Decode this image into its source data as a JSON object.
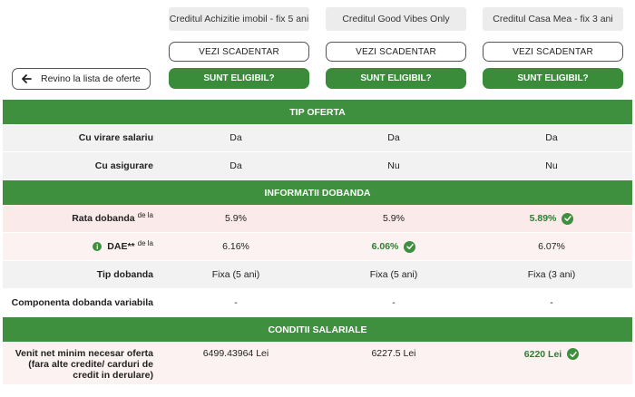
{
  "back_button": {
    "label": "Revino la lista de oferte",
    "icon": "arrow-left-icon"
  },
  "offers": [
    {
      "title": "Creditul Achizitie imobil - fix 5 ani",
      "schedule_label": "VEZI SCADENTAR",
      "eligible_label": "SUNT ELIGIBIL?"
    },
    {
      "title": "Creditul Good Vibes Only",
      "schedule_label": "VEZI SCADENTAR",
      "eligible_label": "SUNT ELIGIBIL?"
    },
    {
      "title": "Creditul Casa Mea - fix 3 ani",
      "schedule_label": "VEZI SCADENTAR",
      "eligible_label": "SUNT ELIGIBIL?"
    }
  ],
  "sections": {
    "tip_oferta": "TIP OFERTA",
    "informatii_dobanda": "INFORMATII DOBANDA",
    "conditii_salariale": "CONDITII SALARIALE"
  },
  "rows": {
    "virare_salariu": {
      "label": "Cu virare salariu",
      "values": [
        "Da",
        "Da",
        "Da"
      ]
    },
    "asigurare": {
      "label": "Cu asigurare",
      "values": [
        "Da",
        "Nu",
        "Nu"
      ]
    },
    "rata_dobanda": {
      "label": "Rata dobanda",
      "sup": "de la",
      "values": [
        "5.9%",
        "5.9%",
        "5.89%"
      ],
      "best_index": 2
    },
    "dae": {
      "label": "DAE**",
      "sup": "de la",
      "values": [
        "6.16%",
        "6.06%",
        "6.07%"
      ],
      "best_index": 1
    },
    "tip_dobanda": {
      "label": "Tip dobanda",
      "values": [
        "Fixa (5 ani)",
        "Fixa (5 ani)",
        "Fixa (3 ani)"
      ]
    },
    "componenta_variabila": {
      "label": "Componenta dobanda variabila",
      "values": [
        "-",
        "-",
        "-"
      ]
    },
    "venit_minim": {
      "label_line1": "Venit net minim necesar oferta",
      "label_line2": "(fara alte credite/ carduri de",
      "label_line3": "credit in derulare)",
      "values": [
        "6499.43964 Lei",
        "6227.5 Lei",
        "6220 Lei"
      ],
      "best_index": 2
    }
  },
  "colors": {
    "accent_green": "#3e8f3e",
    "best_text": "#2e7d32"
  }
}
